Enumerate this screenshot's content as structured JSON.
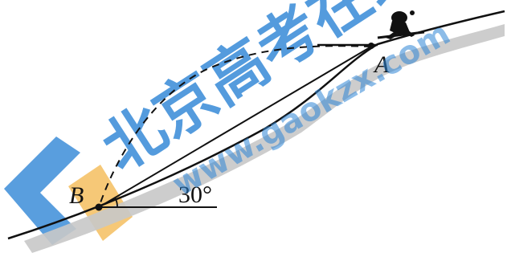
{
  "labels": {
    "point_a": "A",
    "point_b": "B",
    "angle": "30°"
  },
  "watermark": {
    "site_text": "www.gaokzx.com",
    "brand_text": "北京高考在线"
  },
  "colors": {
    "line": "#111111",
    "slope_shadow": "#c8c8c8",
    "watermark_blue": "#2f86d6",
    "watermark_orange": "#f3b64a"
  }
}
